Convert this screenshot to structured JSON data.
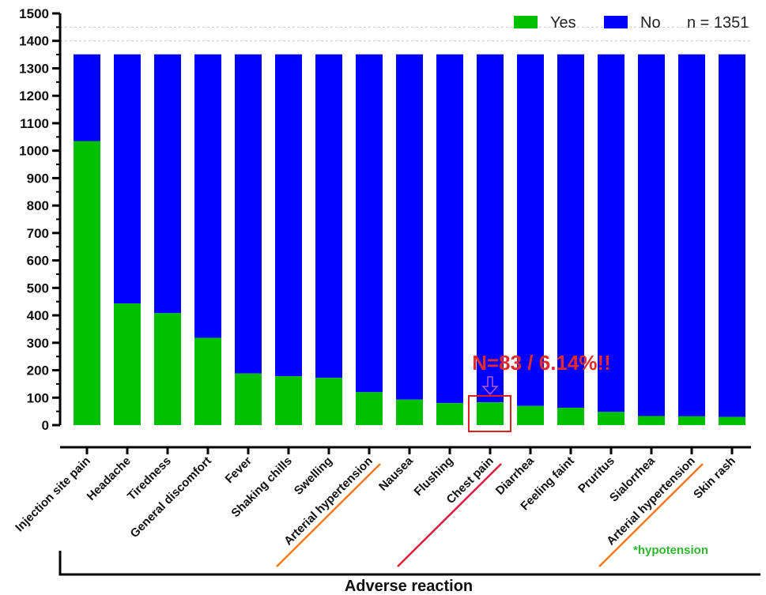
{
  "chart_data": {
    "type": "bar",
    "stacked": true,
    "title": "",
    "xlabel": "Adverse reaction",
    "ylabel": "",
    "ylim": [
      0,
      1500
    ],
    "yticks": [
      0,
      100,
      200,
      300,
      400,
      500,
      600,
      700,
      800,
      900,
      1000,
      1100,
      1200,
      1300,
      1400,
      1500
    ],
    "total": 1351,
    "total_label": "n = 1351",
    "categories": [
      "Injection site pain",
      "Headache",
      "Tiredness",
      "General discomfort",
      "Fever",
      "Shaking chills",
      "Swelling",
      "Arterial hypertension",
      "Nausea",
      "Flushing",
      "Chest pain",
      "Diarrhea",
      "Feeling faint",
      "Pruritus",
      "Sialorrhea",
      "Arterial hypertension",
      "Skin rash"
    ],
    "series": [
      {
        "name": "Yes",
        "color": "#00c000",
        "values": [
          1035,
          443,
          408,
          318,
          188,
          178,
          172,
          120,
          93,
          80,
          83,
          70,
          63,
          48,
          33,
          32,
          30
        ]
      },
      {
        "name": "No",
        "color": "#0000ff",
        "values": [
          316,
          908,
          943,
          1033,
          1163,
          1173,
          1179,
          1231,
          1258,
          1271,
          1268,
          1281,
          1288,
          1303,
          1318,
          1319,
          1321
        ]
      }
    ],
    "legend_position": "top-right",
    "annotation": {
      "text": "N=83 / 6.14%!!",
      "category_index": 10,
      "color": "#e32b2b",
      "arrow_color": "#b05ac8"
    },
    "strikethrough": [
      {
        "category_index": 7,
        "color": "#f07a1e"
      },
      {
        "category_index": 10,
        "color": "#d81b3a"
      },
      {
        "category_index": 15,
        "color": "#f07a1e"
      }
    ],
    "footnote": {
      "text": "*hypotension",
      "color": "#2fb52f"
    }
  }
}
